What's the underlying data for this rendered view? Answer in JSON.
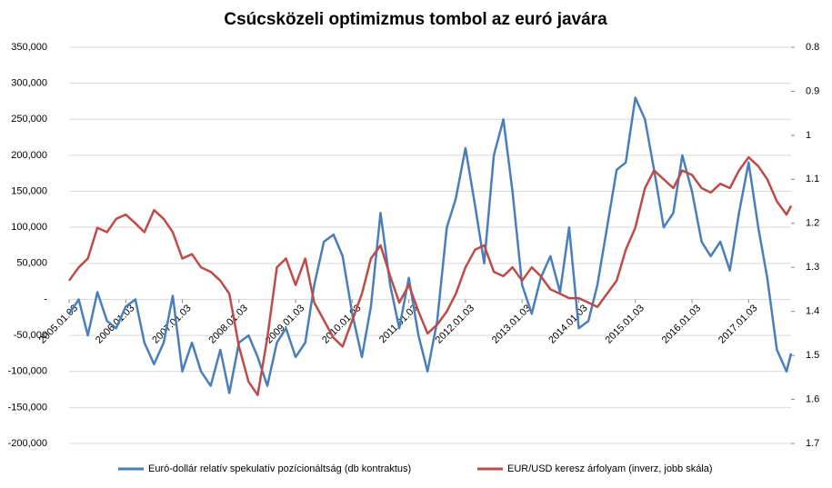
{
  "chart_data": {
    "type": "line",
    "title": "Csúcsközeli optimizmus tombol az euró javára",
    "x": [
      2005,
      2005.17,
      2005.33,
      2005.5,
      2005.67,
      2005.83,
      2006,
      2006.17,
      2006.33,
      2006.5,
      2006.67,
      2006.83,
      2007,
      2007.17,
      2007.33,
      2007.5,
      2007.67,
      2007.83,
      2008,
      2008.17,
      2008.33,
      2008.5,
      2008.67,
      2008.83,
      2009,
      2009.17,
      2009.33,
      2009.5,
      2009.67,
      2009.83,
      2010,
      2010.17,
      2010.33,
      2010.5,
      2010.67,
      2010.83,
      2011,
      2011.17,
      2011.33,
      2011.5,
      2011.67,
      2011.83,
      2012,
      2012.17,
      2012.33,
      2012.5,
      2012.67,
      2012.83,
      2013,
      2013.17,
      2013.33,
      2013.5,
      2013.67,
      2013.83,
      2014,
      2014.17,
      2014.33,
      2014.5,
      2014.67,
      2014.83,
      2015,
      2015.17,
      2015.33,
      2015.5,
      2015.67,
      2015.83,
      2016,
      2016.17,
      2016.33,
      2016.5,
      2016.67,
      2016.83,
      2017,
      2017.17,
      2017.33,
      2017.5,
      2017.67,
      2017.75
    ],
    "series": [
      {
        "name": "Euró-dollár relatív spekulatív pozícionáltság (db kontraktus)",
        "color": "#4a7ebb",
        "axis": "y",
        "values": [
          -20000,
          0,
          -50000,
          10000,
          -30000,
          -40000,
          -10000,
          0,
          -60000,
          -90000,
          -60000,
          5000,
          -100000,
          -60000,
          -100000,
          -120000,
          -70000,
          -130000,
          -60000,
          -50000,
          -80000,
          -120000,
          -60000,
          -40000,
          -80000,
          -60000,
          20000,
          80000,
          90000,
          60000,
          -20000,
          -80000,
          -10000,
          120000,
          20000,
          -40000,
          30000,
          -50000,
          -100000,
          -30000,
          100000,
          140000,
          210000,
          130000,
          50000,
          200000,
          250000,
          150000,
          20000,
          -20000,
          30000,
          60000,
          10000,
          100000,
          -40000,
          -30000,
          20000,
          100000,
          180000,
          190000,
          280000,
          250000,
          180000,
          100000,
          120000,
          200000,
          150000,
          80000,
          60000,
          80000,
          40000,
          120000,
          190000,
          100000,
          30000,
          -70000,
          -100000,
          -75000
        ]
      },
      {
        "name": "EUR/USD keresz árfolyam (inverz, jobb skála)",
        "color": "#be4b48",
        "axis": "y2",
        "values": [
          1.33,
          1.3,
          1.28,
          1.21,
          1.22,
          1.19,
          1.18,
          1.2,
          1.22,
          1.17,
          1.19,
          1.22,
          1.28,
          1.27,
          1.3,
          1.31,
          1.33,
          1.36,
          1.48,
          1.56,
          1.59,
          1.46,
          1.3,
          1.28,
          1.34,
          1.28,
          1.38,
          1.42,
          1.46,
          1.48,
          1.42,
          1.36,
          1.28,
          1.25,
          1.32,
          1.38,
          1.34,
          1.4,
          1.45,
          1.43,
          1.4,
          1.36,
          1.3,
          1.26,
          1.25,
          1.31,
          1.32,
          1.3,
          1.33,
          1.3,
          1.32,
          1.35,
          1.36,
          1.37,
          1.37,
          1.38,
          1.39,
          1.36,
          1.33,
          1.26,
          1.21,
          1.12,
          1.08,
          1.1,
          1.12,
          1.08,
          1.09,
          1.12,
          1.13,
          1.11,
          1.12,
          1.08,
          1.05,
          1.07,
          1.1,
          1.15,
          1.18,
          1.16
        ]
      }
    ],
    "xlim": [
      2005,
      2017.75
    ],
    "xticks": [
      {
        "value": 2005,
        "label": "2005.01.03"
      },
      {
        "value": 2006,
        "label": "2006.01.03"
      },
      {
        "value": 2007,
        "label": "2007.01.03"
      },
      {
        "value": 2008,
        "label": "2008.01.03"
      },
      {
        "value": 2009,
        "label": "2009.01.03"
      },
      {
        "value": 2010,
        "label": "2010.01.03"
      },
      {
        "value": 2011,
        "label": "2011.01.03"
      },
      {
        "value": 2012,
        "label": "2012.01.03"
      },
      {
        "value": 2013,
        "label": "2013.01.03"
      },
      {
        "value": 2014,
        "label": "2014.01.03"
      },
      {
        "value": 2015,
        "label": "2015.01.03"
      },
      {
        "value": 2016,
        "label": "2016.01.03"
      },
      {
        "value": 2017,
        "label": "2017.01.03"
      }
    ],
    "ylim": [
      -200000,
      350000
    ],
    "yticks": [
      {
        "value": -200000,
        "label": "-200,000"
      },
      {
        "value": -150000,
        "label": "-150,000"
      },
      {
        "value": -100000,
        "label": "-100,000"
      },
      {
        "value": -50000,
        "label": "-50,000"
      },
      {
        "value": 0,
        "label": "-"
      },
      {
        "value": 50000,
        "label": "50,000"
      },
      {
        "value": 100000,
        "label": "100,000"
      },
      {
        "value": 150000,
        "label": "150,000"
      },
      {
        "value": 200000,
        "label": "200,000"
      },
      {
        "value": 250000,
        "label": "250,000"
      },
      {
        "value": 300000,
        "label": "300,000"
      },
      {
        "value": 350000,
        "label": "350,000"
      }
    ],
    "y2lim": [
      1.7,
      0.8
    ],
    "y2ticks": [
      0.8,
      0.9,
      1,
      1.1,
      1.2,
      1.3,
      1.4,
      1.5,
      1.6,
      1.7
    ],
    "grid": true,
    "legend": "bottom"
  }
}
